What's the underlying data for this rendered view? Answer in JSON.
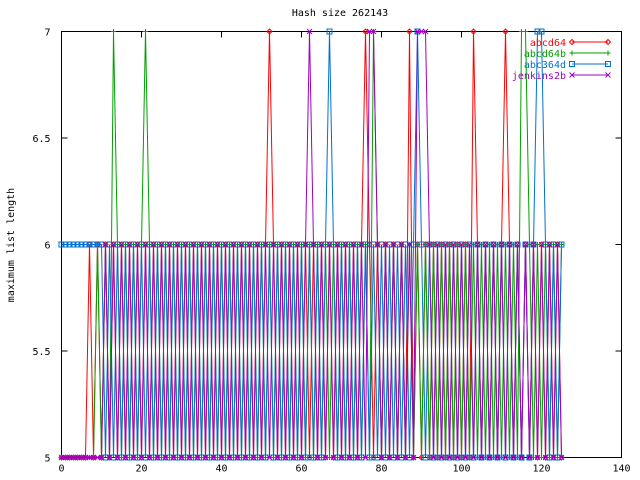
{
  "chart_data": {
    "type": "line",
    "title": "Hash size 262143",
    "xlabel": "",
    "ylabel": "maximum list length",
    "xlim": [
      0,
      140
    ],
    "ylim": [
      5,
      7
    ],
    "xticks": [
      0,
      20,
      40,
      60,
      80,
      100,
      120,
      140
    ],
    "xtick_labels": [
      "0",
      "20",
      "40",
      "60",
      "80",
      "100",
      "120",
      "140"
    ],
    "yticks": [
      5,
      5.5,
      6,
      6.5,
      7
    ],
    "ytick_labels": [
      "5",
      "5.5",
      "6",
      "6.5",
      "7"
    ],
    "grid": false,
    "legend_position": "top-right",
    "x": [
      0,
      1,
      2,
      3,
      4,
      5,
      6,
      7,
      8,
      9,
      10,
      11,
      12,
      13,
      14,
      15,
      16,
      17,
      18,
      19,
      20,
      21,
      22,
      23,
      24,
      25,
      26,
      27,
      28,
      29,
      30,
      31,
      32,
      33,
      34,
      35,
      36,
      37,
      38,
      39,
      40,
      41,
      42,
      43,
      44,
      45,
      46,
      47,
      48,
      49,
      50,
      51,
      52,
      53,
      54,
      55,
      56,
      57,
      58,
      59,
      60,
      61,
      62,
      63,
      64,
      65,
      66,
      67,
      68,
      69,
      70,
      71,
      72,
      73,
      74,
      75,
      76,
      77,
      78,
      79,
      80,
      81,
      82,
      83,
      84,
      85,
      86,
      87,
      88,
      89,
      90,
      91,
      92,
      93,
      94,
      95,
      96,
      97,
      98,
      99,
      100,
      101,
      102,
      103,
      104,
      105,
      106,
      107,
      108,
      109,
      110,
      111,
      112,
      113,
      114,
      115,
      116,
      117,
      118,
      119,
      120,
      121,
      122,
      123,
      124,
      125
    ],
    "series": [
      {
        "name": "abcd64",
        "color": "#ff0000",
        "marker": "diamond",
        "values": [
          5,
          5,
          5,
          5,
          5,
          5,
          5,
          6,
          5,
          6,
          5,
          6,
          5,
          6,
          5,
          6,
          5,
          6,
          5,
          6,
          5,
          6,
          5,
          6,
          5,
          6,
          5,
          6,
          5,
          6,
          5,
          6,
          5,
          6,
          5,
          6,
          5,
          6,
          5,
          6,
          5,
          6,
          5,
          6,
          5,
          6,
          5,
          6,
          5,
          6,
          5,
          6,
          7,
          6,
          5,
          6,
          5,
          6,
          5,
          6,
          5,
          6,
          5,
          6,
          5,
          6,
          5,
          6,
          5,
          6,
          5,
          6,
          5,
          6,
          5,
          6,
          7,
          6,
          5,
          6,
          5,
          6,
          5,
          6,
          5,
          6,
          5,
          7,
          5,
          6,
          5,
          6,
          5,
          6,
          5,
          6,
          5,
          6,
          5,
          6,
          5,
          6,
          5,
          7,
          6,
          5,
          6,
          5,
          6,
          5,
          6,
          7,
          6,
          5,
          6,
          5,
          6,
          5,
          6,
          5,
          6,
          5,
          6,
          5,
          6,
          5
        ]
      },
      {
        "name": "abcd64b",
        "color": "#00a000",
        "marker": "plus",
        "values": [
          5,
          5,
          5,
          5,
          5,
          5,
          5,
          5,
          5,
          6,
          5,
          6,
          5,
          7,
          6,
          5,
          6,
          5,
          6,
          5,
          6,
          7,
          6,
          5,
          6,
          5,
          6,
          5,
          6,
          5,
          6,
          5,
          6,
          5,
          6,
          5,
          6,
          5,
          6,
          5,
          6,
          5,
          6,
          5,
          6,
          5,
          6,
          5,
          6,
          5,
          6,
          5,
          6,
          5,
          6,
          5,
          6,
          5,
          6,
          5,
          6,
          5,
          6,
          5,
          6,
          5,
          6,
          5,
          6,
          5,
          6,
          5,
          6,
          5,
          6,
          5,
          6,
          5,
          7,
          6,
          5,
          6,
          5,
          6,
          5,
          6,
          5,
          6,
          5,
          6,
          5,
          6,
          5,
          6,
          5,
          6,
          5,
          6,
          5,
          6,
          5,
          6,
          5,
          6,
          5,
          6,
          5,
          6,
          5,
          6,
          5,
          6,
          5,
          6,
          5,
          7,
          7,
          6,
          5,
          6,
          5,
          6,
          5,
          6,
          5,
          6
        ]
      },
      {
        "name": "abc364d",
        "color": "#0070d0",
        "marker": "square",
        "values": [
          6,
          6,
          6,
          6,
          6,
          6,
          6,
          6,
          6,
          6,
          6,
          5,
          6,
          5,
          6,
          5,
          6,
          5,
          6,
          5,
          6,
          5,
          6,
          5,
          6,
          5,
          6,
          5,
          6,
          5,
          6,
          5,
          6,
          5,
          6,
          5,
          6,
          5,
          6,
          5,
          6,
          5,
          6,
          5,
          6,
          5,
          6,
          5,
          6,
          5,
          6,
          5,
          6,
          5,
          6,
          5,
          6,
          5,
          6,
          5,
          6,
          5,
          6,
          5,
          6,
          5,
          6,
          7,
          6,
          5,
          6,
          5,
          6,
          5,
          6,
          5,
          6,
          5,
          6,
          5,
          6,
          5,
          6,
          5,
          6,
          5,
          6,
          5,
          6,
          7,
          6,
          5,
          6,
          5,
          6,
          5,
          6,
          5,
          6,
          5,
          6,
          5,
          6,
          5,
          6,
          5,
          6,
          5,
          6,
          5,
          6,
          5,
          6,
          5,
          6,
          5,
          6,
          5,
          6,
          7,
          7,
          6,
          5,
          6,
          5,
          6
        ]
      },
      {
        "name": "jenkins2b",
        "color": "#a000c0",
        "marker": "cross",
        "values": [
          5,
          5,
          5,
          5,
          5,
          5,
          5,
          5,
          5,
          5,
          5,
          6,
          5,
          6,
          5,
          6,
          5,
          6,
          5,
          6,
          5,
          6,
          5,
          6,
          5,
          6,
          5,
          6,
          5,
          6,
          5,
          6,
          5,
          6,
          5,
          6,
          5,
          6,
          5,
          6,
          5,
          6,
          5,
          6,
          5,
          6,
          5,
          6,
          5,
          6,
          5,
          6,
          5,
          6,
          5,
          6,
          5,
          6,
          5,
          6,
          5,
          6,
          7,
          6,
          5,
          6,
          5,
          6,
          5,
          6,
          5,
          6,
          5,
          6,
          5,
          6,
          5,
          7,
          7,
          6,
          5,
          6,
          5,
          6,
          5,
          6,
          5,
          6,
          5,
          7,
          7,
          7,
          6,
          5,
          6,
          5,
          6,
          5,
          6,
          5,
          6,
          5,
          6,
          5,
          6,
          5,
          6,
          5,
          6,
          5,
          6,
          5,
          6,
          5,
          6,
          5,
          6,
          5,
          6,
          5,
          6,
          5,
          6,
          5,
          6,
          5
        ]
      }
    ]
  }
}
